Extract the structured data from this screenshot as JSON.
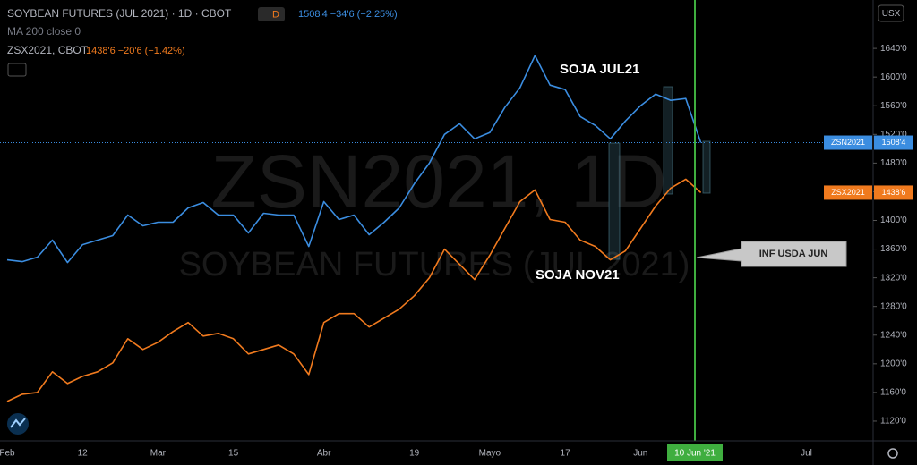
{
  "chart_data": {
    "type": "line",
    "title": "SOYBEAN FUTURES (JUL 2021) · 1D · CBOT",
    "interval_badge": "D",
    "main_quote": "1508'4 −34'6 (−2.25%)",
    "indicator": "MA 200 close 0",
    "compare_symbol": "ZSX2021, CBOT",
    "compare_quote": "1438'6 −20'6 (−1.42%)",
    "currency": "USX",
    "watermark": "ZSN2021, 1D",
    "watermark_subtitle": "SOYBEAN FUTURES (JUL 2021)",
    "annotations": [
      "SOJA JUL21",
      "SOJA NOV21",
      "INF USDA JUN"
    ],
    "crosshair_label": "10 Jun '21",
    "categories": [
      "Feb",
      null,
      null,
      null,
      null,
      "12",
      null,
      null,
      null,
      null,
      "Mar",
      null,
      null,
      null,
      null,
      "15",
      null,
      null,
      null,
      null,
      null,
      "Abr",
      null,
      null,
      null,
      null,
      null,
      "19",
      null,
      null,
      null,
      null,
      "Mayo",
      null,
      null,
      null,
      null,
      "17",
      null,
      null,
      null,
      null,
      "Jun",
      null,
      null,
      null,
      null,
      null,
      null,
      null,
      null,
      null,
      null,
      "Jul",
      null,
      null,
      null,
      null
    ],
    "series": [
      {
        "name": "ZSN2021",
        "color": "#3b8de0",
        "last_label": "1508'4",
        "values": [
          1345,
          1342.5,
          1348.75,
          1372.5,
          1341.25,
          1366.25,
          1372.5,
          1378.75,
          1407.5,
          1392.5,
          1397.5,
          1397.5,
          1417.5,
          1425,
          1407.5,
          1407.5,
          1382.5,
          1410,
          1407.5,
          1407.5,
          1363.75,
          1426.25,
          1401.25,
          1407.5,
          1380,
          1397.5,
          1417.5,
          1451.25,
          1480,
          1520,
          1535,
          1513.75,
          1522.5,
          1557.5,
          1585,
          1630,
          1588.75,
          1582.5,
          1545,
          1532.5,
          1513.75,
          1538.75,
          1560,
          1576.25,
          1567.5,
          1570,
          1508.5,
          null,
          null,
          null,
          null,
          null,
          null,
          null,
          null,
          null,
          null,
          null
        ]
      },
      {
        "name": "ZSX2021",
        "color": "#f07a1e",
        "last_label": "1438'6",
        "values": [
          1147.5,
          1157.5,
          1160,
          1188.75,
          1172.5,
          1182.5,
          1188.75,
          1201.25,
          1235,
          1220,
          1230,
          1245,
          1257.5,
          1238.75,
          1242.5,
          1235,
          1213.75,
          1220,
          1226.25,
          1213.75,
          1185,
          1257.5,
          1270,
          1270,
          1251.25,
          1263.75,
          1276.25,
          1295,
          1320,
          1360,
          1338.75,
          1317.5,
          1351.25,
          1388.75,
          1426.25,
          1442.5,
          1401.25,
          1397.5,
          1372.5,
          1363.75,
          1345,
          1357.5,
          1388.75,
          1420,
          1445,
          1457.5,
          1438.75,
          null,
          null,
          null,
          null,
          null,
          null,
          null,
          null,
          null,
          null,
          null
        ]
      }
    ],
    "ylim": [
      1096.25,
      1707.5
    ],
    "yticks": [
      {
        "value": 1120,
        "label": "1120'0"
      },
      {
        "value": 1160,
        "label": "1160'0"
      },
      {
        "value": 1200,
        "label": "1200'0"
      },
      {
        "value": 1240,
        "label": "1240'0"
      },
      {
        "value": 1280,
        "label": "1280'0"
      },
      {
        "value": 1320,
        "label": "1320'0"
      },
      {
        "value": 1360,
        "label": "1360'0"
      },
      {
        "value": 1400,
        "label": "1400'0"
      },
      {
        "value": 1440,
        "label": "1440'0"
      },
      {
        "value": 1480,
        "label": "1480'0"
      },
      {
        "value": 1520,
        "label": "1520'0"
      },
      {
        "value": 1560,
        "label": "1560'0"
      },
      {
        "value": 1600,
        "label": "1600'0"
      },
      {
        "value": 1640,
        "label": "1640'0"
      }
    ],
    "grid": false
  }
}
